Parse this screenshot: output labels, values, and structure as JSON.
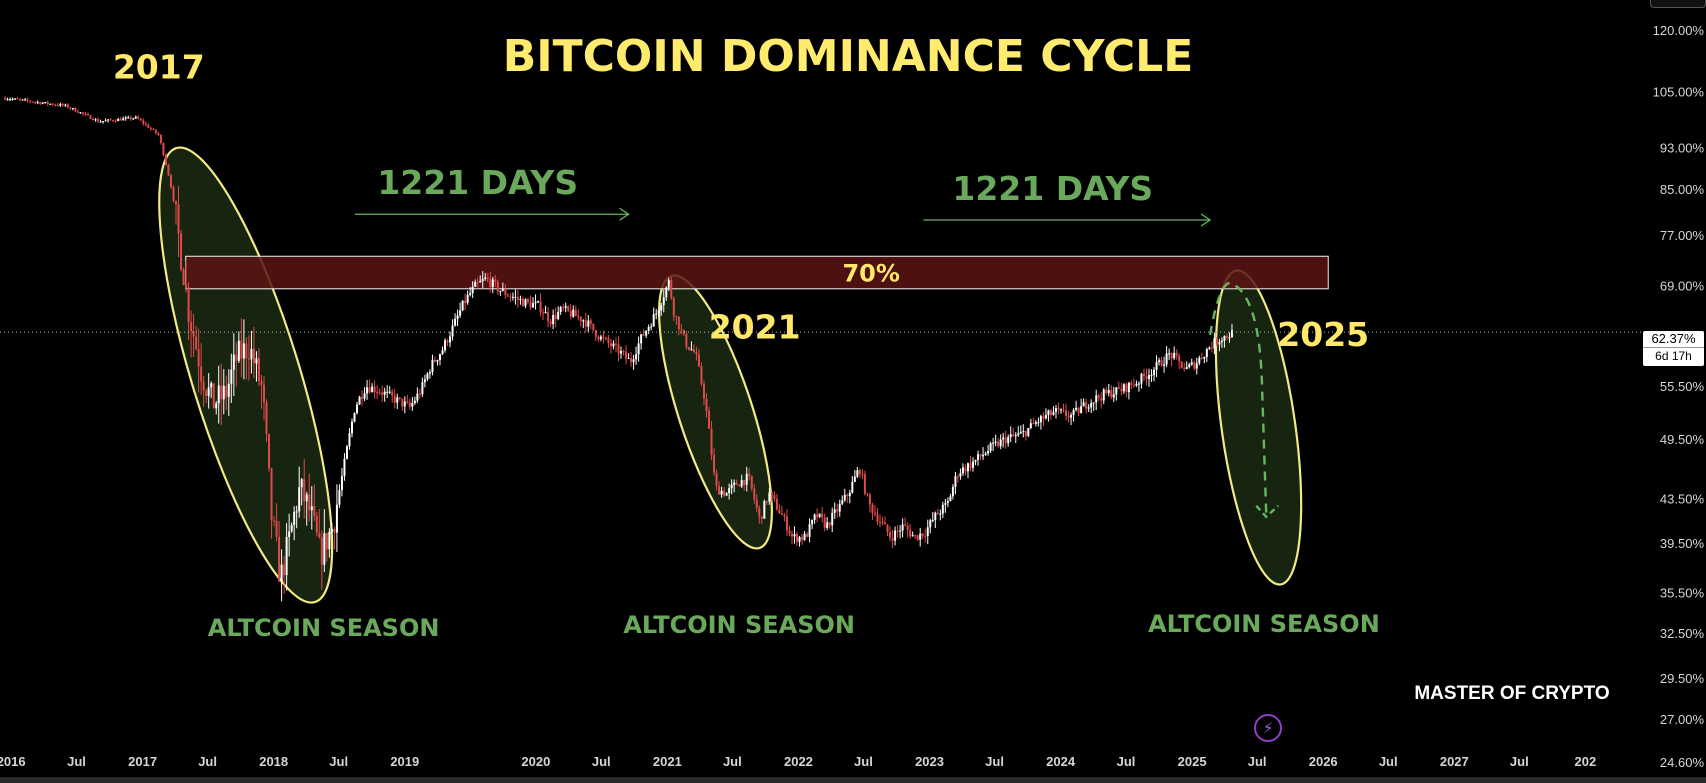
{
  "chart_data": {
    "type": "candlestick",
    "title": "BITCOIN DOMINANCE CYCLE",
    "y_scale": "log",
    "ylim": [
      23.5,
      128
    ],
    "x_range": [
      "2015-12-01",
      "2028-06-01"
    ],
    "x_ticks": [
      {
        "date": "2016-01-01",
        "label": "2016"
      },
      {
        "date": "2016-07-01",
        "label": "Jul"
      },
      {
        "date": "2017-01-01",
        "label": "2017"
      },
      {
        "date": "2017-07-01",
        "label": "Jul"
      },
      {
        "date": "2018-01-01",
        "label": "2018"
      },
      {
        "date": "2018-07-01",
        "label": "Jul"
      },
      {
        "date": "2019-01-01",
        "label": "2019"
      },
      {
        "date": "2020-01-01",
        "label": "2020"
      },
      {
        "date": "2020-07-01",
        "label": "Jul"
      },
      {
        "date": "2021-01-01",
        "label": "2021"
      },
      {
        "date": "2021-07-01",
        "label": "Jul"
      },
      {
        "date": "2022-01-01",
        "label": "2022"
      },
      {
        "date": "2022-07-01",
        "label": "Jul"
      },
      {
        "date": "2023-01-01",
        "label": "2023"
      },
      {
        "date": "2023-07-01",
        "label": "Jul"
      },
      {
        "date": "2024-01-01",
        "label": "2024"
      },
      {
        "date": "2024-07-01",
        "label": "Jul"
      },
      {
        "date": "2025-01-01",
        "label": "2025"
      },
      {
        "date": "2025-07-01",
        "label": "Jul"
      },
      {
        "date": "2026-01-01",
        "label": "2026"
      },
      {
        "date": "2026-07-01",
        "label": "Jul"
      },
      {
        "date": "2027-01-01",
        "label": "2027"
      },
      {
        "date": "2027-07-01",
        "label": "Jul"
      },
      {
        "date": "2028-01-01",
        "label": "202"
      }
    ],
    "y_ticks": [
      {
        "value": 120.0,
        "label": "120.00%"
      },
      {
        "value": 105.0,
        "label": "105.00%"
      },
      {
        "value": 93.0,
        "label": "93.00%"
      },
      {
        "value": 85.0,
        "label": "85.00%"
      },
      {
        "value": 77.0,
        "label": "77.00%"
      },
      {
        "value": 69.0,
        "label": "69.00%"
      },
      {
        "value": 55.5,
        "label": "55.50%"
      },
      {
        "value": 49.5,
        "label": "49.50%"
      },
      {
        "value": 43.5,
        "label": "43.50%"
      },
      {
        "value": 39.5,
        "label": "39.50%"
      },
      {
        "value": 35.5,
        "label": "35.50%"
      },
      {
        "value": 32.5,
        "label": "32.50%"
      },
      {
        "value": 29.5,
        "label": "29.50%"
      },
      {
        "value": 27.0,
        "label": "27.00%"
      },
      {
        "value": 24.6,
        "label": "24.60%"
      }
    ],
    "current_value": 62.37,
    "current_value_label": "62.37%",
    "countdown_label": "6d 17h",
    "series_points": [
      [
        "2015-12-15",
        103.5
      ],
      [
        "2016-06-01",
        101.8
      ],
      [
        "2016-09-01",
        98.4
      ],
      [
        "2016-12-15",
        99.2
      ],
      [
        "2017-02-15",
        95.5
      ],
      [
        "2017-03-20",
        86.0
      ],
      [
        "2017-04-15",
        75.0
      ],
      [
        "2017-05-10",
        65.0
      ],
      [
        "2017-06-15",
        57.0
      ],
      [
        "2017-07-15",
        53.5
      ],
      [
        "2017-08-20",
        54.5
      ],
      [
        "2017-09-20",
        59.0
      ],
      [
        "2017-10-25",
        60.5
      ],
      [
        "2017-11-30",
        55.0
      ],
      [
        "2017-12-25",
        42.0
      ],
      [
        "2018-01-20",
        36.5
      ],
      [
        "2018-02-15",
        40.0
      ],
      [
        "2018-03-15",
        44.5
      ],
      [
        "2018-04-15",
        42.0
      ],
      [
        "2018-05-10",
        38.5
      ],
      [
        "2018-06-15",
        41.0
      ],
      [
        "2018-07-15",
        46.5
      ],
      [
        "2018-08-15",
        53.0
      ],
      [
        "2018-09-15",
        55.5
      ],
      [
        "2018-10-20",
        55.0
      ],
      [
        "2018-12-01",
        54.0
      ],
      [
        "2019-01-15",
        53.0
      ],
      [
        "2019-02-15",
        55.0
      ],
      [
        "2019-03-15",
        58.0
      ],
      [
        "2019-04-15",
        60.0
      ],
      [
        "2019-05-15",
        63.0
      ],
      [
        "2019-06-15",
        66.5
      ],
      [
        "2019-07-15",
        68.8
      ],
      [
        "2019-08-15",
        70.0
      ],
      [
        "2019-10-01",
        68.0
      ],
      [
        "2019-12-01",
        66.5
      ],
      [
        "2020-01-10",
        66.0
      ],
      [
        "2020-02-10",
        64.0
      ],
      [
        "2020-03-15",
        65.5
      ],
      [
        "2020-05-15",
        64.0
      ],
      [
        "2020-07-01",
        61.5
      ],
      [
        "2020-08-15",
        60.0
      ],
      [
        "2020-09-20",
        58.5
      ],
      [
        "2020-10-20",
        61.5
      ],
      [
        "2020-12-01",
        65.0
      ],
      [
        "2021-01-05",
        69.5
      ],
      [
        "2021-01-20",
        65.0
      ],
      [
        "2021-02-20",
        61.0
      ],
      [
        "2021-03-20",
        59.5
      ],
      [
        "2021-04-15",
        54.0
      ],
      [
        "2021-05-15",
        44.5
      ],
      [
        "2021-06-15",
        44.0
      ],
      [
        "2021-07-15",
        45.0
      ],
      [
        "2021-08-15",
        45.5
      ],
      [
        "2021-09-15",
        41.5
      ],
      [
        "2021-10-10",
        44.0
      ],
      [
        "2021-11-15",
        42.0
      ],
      [
        "2021-12-15",
        40.0
      ],
      [
        "2022-01-20",
        40.0
      ],
      [
        "2022-02-20",
        42.0
      ],
      [
        "2022-03-20",
        41.0
      ],
      [
        "2022-04-20",
        42.5
      ],
      [
        "2022-05-20",
        44.0
      ],
      [
        "2022-06-20",
        46.5
      ],
      [
        "2022-07-15",
        43.0
      ],
      [
        "2022-08-15",
        41.5
      ],
      [
        "2022-09-15",
        40.0
      ],
      [
        "2022-10-20",
        41.0
      ],
      [
        "2022-11-20",
        40.0
      ],
      [
        "2022-12-20",
        40.5
      ],
      [
        "2023-01-20",
        42.0
      ],
      [
        "2023-02-20",
        43.0
      ],
      [
        "2023-03-20",
        46.0
      ],
      [
        "2023-05-01",
        47.0
      ],
      [
        "2023-06-20",
        48.5
      ],
      [
        "2023-08-01",
        49.5
      ],
      [
        "2023-09-15",
        50.0
      ],
      [
        "2023-11-01",
        51.5
      ],
      [
        "2023-12-15",
        52.5
      ],
      [
        "2024-02-01",
        52.0
      ],
      [
        "2024-03-15",
        53.5
      ],
      [
        "2024-05-01",
        54.5
      ],
      [
        "2024-06-15",
        55.0
      ],
      [
        "2024-08-01",
        56.0
      ],
      [
        "2024-09-15",
        57.5
      ],
      [
        "2024-11-01",
        59.5
      ],
      [
        "2024-12-15",
        57.5
      ],
      [
        "2025-01-15",
        58.5
      ],
      [
        "2025-02-20",
        60.5
      ],
      [
        "2025-03-20",
        61.5
      ],
      [
        "2025-04-25",
        62.3
      ]
    ],
    "resistance_zone": {
      "label": "70%",
      "x_start": "2017-05-01",
      "x_end": "2026-01-15",
      "y_low": 68.5,
      "y_high": 73.5
    },
    "annotations": {
      "year_labels": [
        {
          "text": "2017",
          "x": "2017-02-15",
          "y": 108.0
        },
        {
          "text": "2021",
          "x": "2021-09-01",
          "y": 61.5
        },
        {
          "text": "2025",
          "x": "2026-01-01",
          "y": 60.5
        }
      ],
      "ellipses": [
        {
          "cx": "2017-10-15",
          "cy": 56.5,
          "rx_days": 300,
          "y_top": 95.0,
          "y_bottom": 34.0,
          "rotate": -17
        },
        {
          "cx": "2021-05-15",
          "cy": 53.0,
          "rx_days": 205,
          "y_top": 71.5,
          "y_bottom": 38.5,
          "rotate": -18
        },
        {
          "cx": "2025-07-05",
          "cy": 51.5,
          "rx_days": 205,
          "y_top": 71.5,
          "y_bottom": 36.0,
          "rotate": -8
        }
      ],
      "altcoin_season_labels": [
        {
          "text": "ALTCOIN SEASON",
          "x": "2018-05-20",
          "y": 32.3
        },
        {
          "text": "ALTCOIN SEASON",
          "x": "2021-07-20",
          "y": 32.5
        },
        {
          "text": "ALTCOIN SEASON",
          "x": "2025-07-20",
          "y": 32.6
        }
      ],
      "cycles": [
        {
          "text": "1221 DAYS",
          "x_start": "2018-08-15",
          "x_end": "2020-09-15",
          "y": 80.5
        },
        {
          "text": "1221 DAYS",
          "x_start": "2022-12-15",
          "x_end": "2025-02-20",
          "y": 79.5
        }
      ],
      "projection": [
        [
          "2025-02-20",
          62.0
        ],
        [
          "2025-04-20",
          69.0
        ],
        [
          "2025-06-01",
          66.5
        ],
        [
          "2025-07-15",
          55.0
        ],
        [
          "2025-08-01",
          42.0
        ]
      ]
    }
  },
  "watermark": "MASTER OF CRYPTO",
  "colors": {
    "background": "#000000",
    "title": "#ffeb6e",
    "green_text": "#6aa95c",
    "candle_up": "#ffffff",
    "candle_down": "#e04a4a",
    "ellipse_stroke": "#f2ea82",
    "ellipse_fill": "#17240f",
    "zone_fill": "#5a1414",
    "projection": "#66b85c",
    "accent": "#8e3fc4"
  },
  "icons": {
    "bolt": "lightning-icon"
  }
}
